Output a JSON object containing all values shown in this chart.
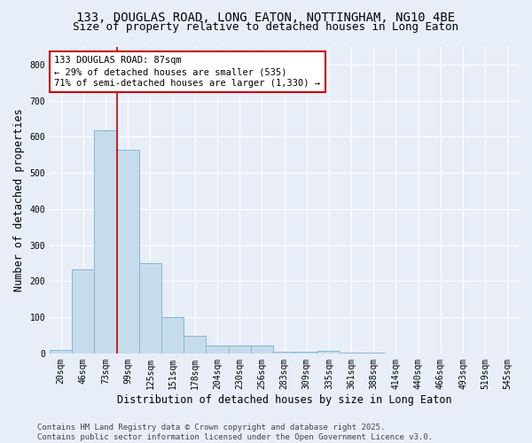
{
  "title_line1": "133, DOUGLAS ROAD, LONG EATON, NOTTINGHAM, NG10 4BE",
  "title_line2": "Size of property relative to detached houses in Long Eaton",
  "xlabel": "Distribution of detached houses by size in Long Eaton",
  "ylabel": "Number of detached properties",
  "categories": [
    "20sqm",
    "46sqm",
    "73sqm",
    "99sqm",
    "125sqm",
    "151sqm",
    "178sqm",
    "204sqm",
    "230sqm",
    "256sqm",
    "283sqm",
    "309sqm",
    "335sqm",
    "361sqm",
    "388sqm",
    "414sqm",
    "440sqm",
    "466sqm",
    "493sqm",
    "519sqm",
    "545sqm"
  ],
  "values": [
    10,
    232,
    619,
    565,
    249,
    99,
    48,
    21,
    21,
    22,
    5,
    5,
    8,
    2,
    1,
    0,
    0,
    0,
    0,
    0,
    0
  ],
  "bar_color": "#c6dcec",
  "bar_edgecolor": "#8ab4d0",
  "vline_color": "#cc0000",
  "annotation_text": "133 DOUGLAS ROAD: 87sqm\n← 29% of detached houses are smaller (535)\n71% of semi-detached houses are larger (1,330) →",
  "annotation_box_color": "#cc0000",
  "ylim": [
    0,
    850
  ],
  "yticks": [
    0,
    100,
    200,
    300,
    400,
    500,
    600,
    700,
    800
  ],
  "footer_line1": "Contains HM Land Registry data © Crown copyright and database right 2025.",
  "footer_line2": "Contains public sector information licensed under the Open Government Licence v3.0.",
  "bg_color": "#e8eef8",
  "plot_bg_color": "#e8eef8",
  "title_fontsize": 10,
  "subtitle_fontsize": 9,
  "axis_label_fontsize": 8.5,
  "tick_fontsize": 7,
  "annotation_fontsize": 7.5,
  "footer_fontsize": 6.5
}
